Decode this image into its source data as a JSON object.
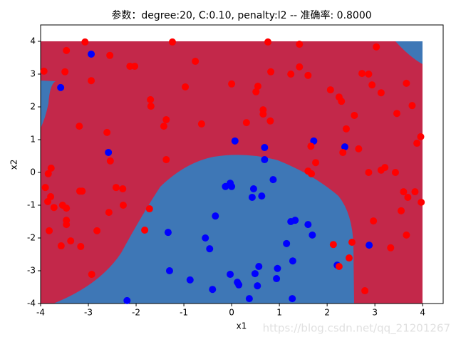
{
  "chart_data": {
    "type": "scatter",
    "title": "参数：degree:20, C:0.10, penalty:l2 -- 准确率: 0.8000",
    "x_label": "x1",
    "y_label": "x2",
    "xlim": [
      -4,
      4.43
    ],
    "ylim": [
      -4,
      4.5
    ],
    "xticks": [
      -4,
      -3,
      -2,
      -1,
      0,
      1,
      2,
      3,
      4
    ],
    "yticks": [
      -4,
      -3,
      -2,
      -1,
      0,
      1,
      2,
      3,
      4
    ],
    "watermark": "https://blog.csdn.net/qq_21201267",
    "series": [
      {
        "color": "#0000ff",
        "x": [
          -2.94,
          -3.58,
          -2.58,
          0.07,
          0.69,
          1.72,
          0.69,
          2.37,
          0.87,
          -0.13,
          -0.03,
          0,
          0.46,
          0.63,
          0.43,
          -0.34,
          -1.33,
          -0.55,
          -0.46,
          1.24,
          1.33,
          1.6,
          1.69,
          1.15,
          2.88,
          2.21,
          1.28,
          0.57,
          0.96,
          -1.3,
          -0.87,
          -0.03,
          0.49,
          0.94,
          0.12,
          0.15,
          0.54,
          -0.4,
          0.37,
          1.27,
          -2.19
        ],
        "y": [
          3.61,
          2.59,
          0.61,
          0.96,
          0.76,
          0.96,
          0.39,
          0.78,
          -0.22,
          -0.43,
          -0.33,
          -0.43,
          -0.5,
          -0.72,
          -0.76,
          -1.33,
          -1.83,
          -2.0,
          -2.33,
          -1.5,
          -1.46,
          -1.59,
          -1.91,
          -2.17,
          -2.22,
          -2.83,
          -2.7,
          -2.87,
          -2.93,
          -3.0,
          -3.28,
          -3.11,
          -3.09,
          -3.24,
          -3.35,
          -3.43,
          -3.46,
          -3.57,
          -3.85,
          -3.85,
          -3.91
        ]
      },
      {
        "color": "#ff0000",
        "x": [
          -3.07,
          -1.24,
          0.76,
          1.42,
          3.03,
          -3.46,
          -2.55,
          -3.93,
          -3.49,
          -2.13,
          -2.03,
          -0.76,
          1.42,
          0.82,
          1.24,
          1.6,
          2.73,
          2.87,
          -2.94,
          -0.97,
          0,
          0.55,
          0.51,
          2.94,
          3.13,
          3.66,
          2.07,
          2.25,
          2.3,
          -1.7,
          -1.69,
          0.66,
          0.66,
          2.57,
          3.46,
          3.78,
          -3.19,
          -1.37,
          -1.42,
          -0.63,
          0.31,
          0.81,
          2.4,
          -2.61,
          3.96,
          3.88,
          1.66,
          2.66,
          2.33,
          -2.54,
          -1.37,
          1.76,
          3.21,
          3.13,
          -3.78,
          -3.84,
          1.6,
          1.67,
          2.87,
          3.43,
          -2.42,
          -2.28,
          -3.9,
          -3.18,
          -3.13,
          3.6,
          3.84,
          3.69,
          -3.79,
          -3.85,
          3.97,
          -2.27,
          -3.72,
          -3.54,
          -3.46,
          -1.72,
          -2.57,
          3.55,
          -3.46,
          -3.46,
          2.97,
          -1.82,
          -2.82,
          -3.82,
          3.66,
          -3.37,
          -3.57,
          -3.16,
          3.33,
          2.13,
          2.52,
          2.46,
          2.25,
          -2.93,
          2.79
        ],
        "y": [
          3.98,
          3.98,
          3.98,
          3.91,
          3.83,
          3.72,
          3.57,
          3.09,
          3.07,
          3.24,
          3.24,
          3.39,
          3.22,
          3.07,
          3.0,
          2.96,
          3.02,
          3.0,
          2.8,
          2.61,
          2.7,
          2.63,
          2.46,
          2.67,
          2.43,
          2.72,
          2.52,
          2.3,
          2.17,
          2.22,
          2.02,
          1.91,
          1.78,
          1.74,
          1.8,
          2.04,
          1.41,
          1.61,
          1.41,
          1.48,
          1.52,
          1.57,
          1.33,
          1.22,
          1.09,
          0.89,
          0.8,
          0.72,
          0.61,
          0.35,
          0.39,
          0.3,
          0.15,
          0.07,
          0.13,
          -0.04,
          0.04,
          -0.04,
          0,
          0,
          -0.46,
          -0.5,
          -0.46,
          -0.57,
          -0.57,
          -0.59,
          -0.59,
          -0.76,
          -0.74,
          -0.89,
          -0.91,
          -1.0,
          -1.07,
          -1.0,
          -1.09,
          -1.11,
          -1.22,
          -1.17,
          -1.46,
          -1.59,
          -1.48,
          -1.76,
          -1.78,
          -1.78,
          -1.91,
          -2.09,
          -2.24,
          -2.26,
          -2.3,
          -2.2,
          -2.13,
          -2.61,
          -2.87,
          -3.11,
          -3.61
        ]
      }
    ]
  }
}
